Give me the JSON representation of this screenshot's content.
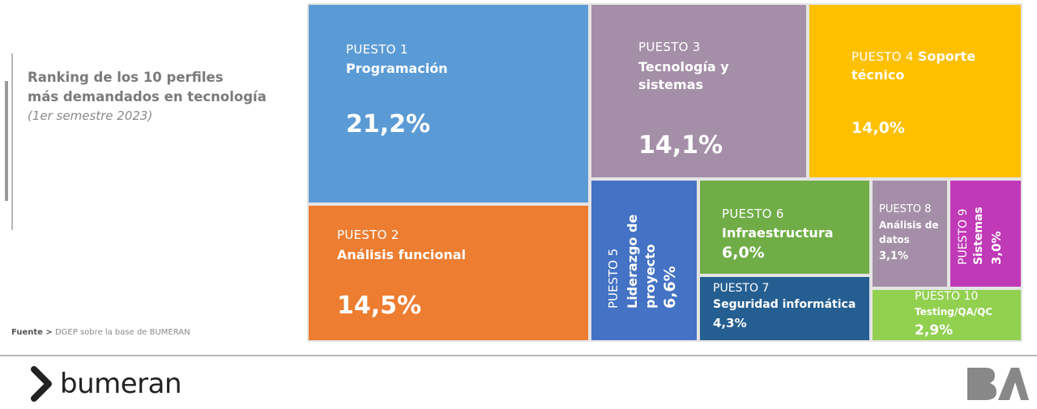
{
  "header": {
    "title_line1": "Ranking de los 10  perfiles",
    "title_line2": "más demandados en tecnología",
    "subtitle": "(1er semestre 2023)"
  },
  "source": {
    "label": "Fuente >",
    "text": "DGEP sobre la base de BUMERAN"
  },
  "chart_data": {
    "type": "treemap",
    "title": "Ranking de los 10  perfiles más demandados en tecnología",
    "subtitle": "(1er semestre 2023)",
    "items": [
      {
        "rank": "PUESTO 1",
        "name": "Programación",
        "value": 21.2,
        "label": "21,2%",
        "color": "#5b9bd5"
      },
      {
        "rank": "PUESTO 2",
        "name": "Análisis funcional",
        "value": 14.5,
        "label": "14,5%",
        "color": "#ed7d31"
      },
      {
        "rank": "PUESTO 3",
        "name": "Tecnología y sistemas",
        "name_line1": "Tecnología y",
        "name_line2": "sistemas",
        "value": 14.1,
        "label": "14,1%",
        "color": "#a58fa8"
      },
      {
        "rank": "PUESTO 4",
        "name": "Soporte técnico",
        "name_line1": "Soporte",
        "name_line2": "técnico",
        "value": 14.0,
        "label": "14,0%",
        "color": "#ffc000"
      },
      {
        "rank": "PUESTO 5",
        "name": "Liderazgo de proyecto",
        "name_line1": "Liderazgo de",
        "name_line2": "proyecto",
        "value": 6.6,
        "label": "6,6%",
        "color": "#4472c4"
      },
      {
        "rank": "PUESTO 6",
        "name": "Infraestructura",
        "value": 6.0,
        "label": "6,0%",
        "color": "#70ad47"
      },
      {
        "rank": "PUESTO 7",
        "name": "Seguridad informática",
        "value": 4.3,
        "label": "4,3%",
        "color": "#255e91"
      },
      {
        "rank": "PUESTO 8",
        "name": "Análisis de datos",
        "name_line1": "Análisis de",
        "name_line2": "datos",
        "value": 3.1,
        "label": "3,1%",
        "color": "#a58fa8"
      },
      {
        "rank": "PUESTO 9",
        "name": "Sistemas",
        "value": 3.0,
        "label": "3,0%",
        "color": "#c039b7"
      },
      {
        "rank": "PUESTO 10",
        "name": "Testing/QA/QC",
        "value": 2.9,
        "label": "2,9%",
        "color": "#92d050"
      }
    ]
  },
  "footer": {
    "brand_left": "bumeran",
    "brand_right": "BA"
  }
}
